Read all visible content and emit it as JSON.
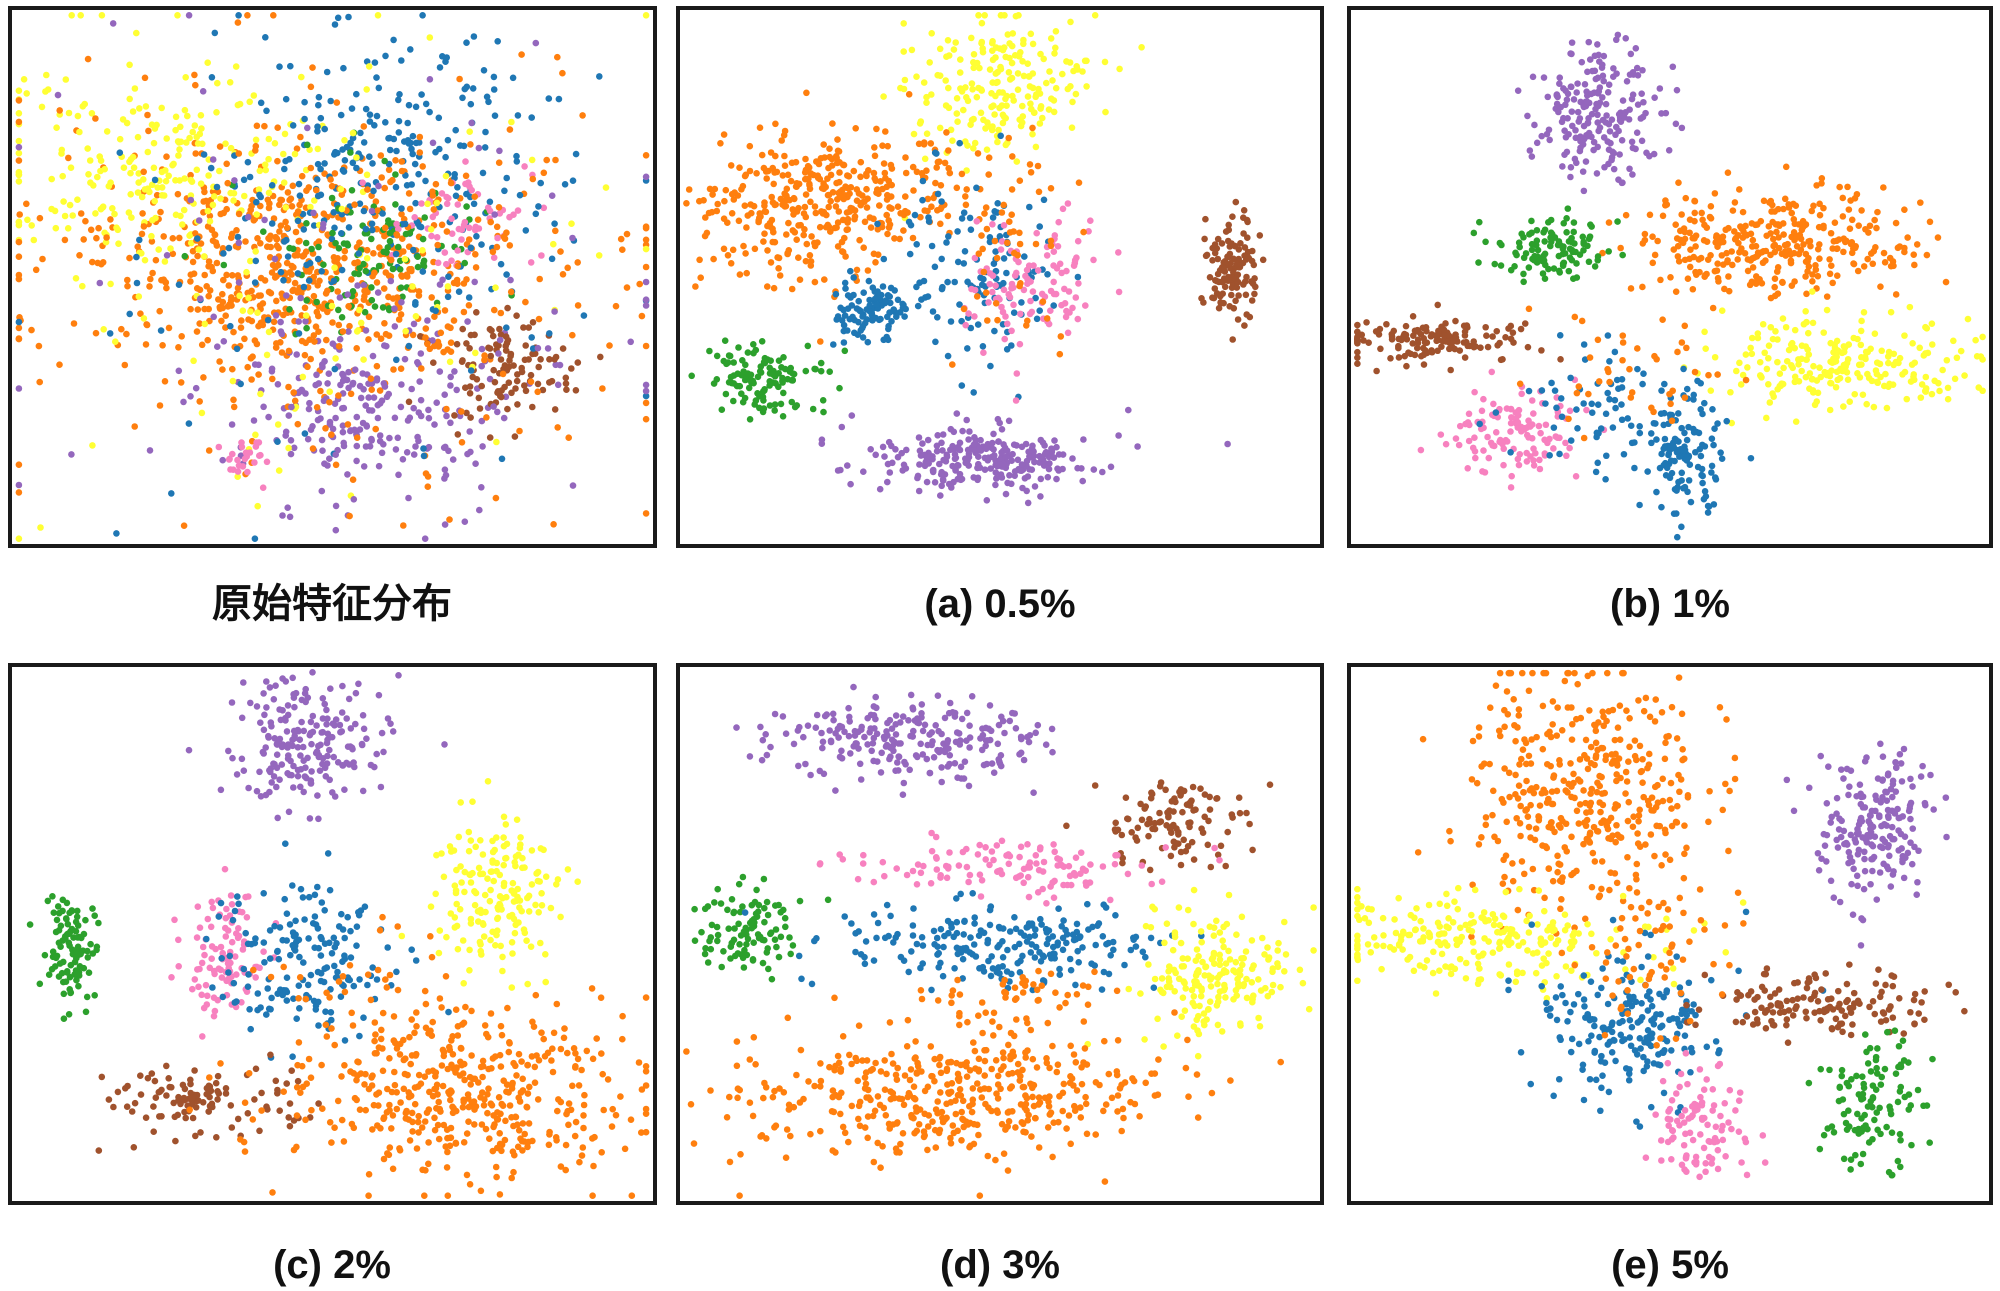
{
  "colors": {
    "orange": "#ff7f0e",
    "yellow": "#ffff33",
    "blue": "#1f77b4",
    "green": "#2ca02c",
    "purple": "#9467bd",
    "brown": "#a0522d",
    "pink": "#f781bf"
  },
  "chart_data": [
    {
      "type": "scatter",
      "title": "原始特征分布",
      "xlim": [
        0,
        100
      ],
      "ylim": [
        0,
        100
      ],
      "grid": false,
      "legend": "none",
      "clusters": [
        {
          "color": "orange",
          "cx": 44,
          "cy": 48,
          "sx": 15,
          "sy": 10,
          "n": 520
        },
        {
          "color": "yellow",
          "cx": 22,
          "cy": 30,
          "sx": 14,
          "sy": 9,
          "n": 220
        },
        {
          "color": "blue",
          "cx": 58,
          "cy": 28,
          "sx": 12,
          "sy": 12,
          "n": 230
        },
        {
          "color": "green",
          "cx": 57,
          "cy": 45,
          "sx": 8,
          "sy": 7,
          "n": 110
        },
        {
          "color": "purple",
          "cx": 55,
          "cy": 73,
          "sx": 11,
          "sy": 9,
          "n": 240
        },
        {
          "color": "brown",
          "cx": 77,
          "cy": 67,
          "sx": 5,
          "sy": 5,
          "n": 110
        },
        {
          "color": "pink",
          "cx": 70,
          "cy": 40,
          "sx": 6,
          "sy": 5,
          "n": 60
        },
        {
          "color": "orange",
          "cx": 50,
          "cy": 50,
          "sx": 26,
          "sy": 22,
          "n": 260
        },
        {
          "color": "yellow",
          "cx": 50,
          "cy": 50,
          "sx": 24,
          "sy": 24,
          "n": 100
        },
        {
          "color": "blue",
          "cx": 50,
          "cy": 50,
          "sx": 24,
          "sy": 22,
          "n": 90
        },
        {
          "color": "purple",
          "cx": 55,
          "cy": 55,
          "sx": 26,
          "sy": 22,
          "n": 70
        },
        {
          "color": "pink",
          "cx": 36,
          "cy": 84,
          "sx": 2,
          "sy": 2,
          "n": 25
        }
      ]
    },
    {
      "type": "scatter",
      "title": "(a) 0.5%",
      "xlim": [
        0,
        100
      ],
      "ylim": [
        0,
        100
      ],
      "grid": false,
      "legend": "none",
      "clusters": [
        {
          "color": "yellow",
          "cx": 49,
          "cy": 14,
          "sx": 7,
          "sy": 7,
          "n": 210
        },
        {
          "color": "orange",
          "cx": 19,
          "cy": 37,
          "sx": 8,
          "sy": 7,
          "n": 280
        },
        {
          "color": "orange",
          "cx": 32,
          "cy": 34,
          "sx": 6,
          "sy": 6,
          "n": 100
        },
        {
          "color": "blue",
          "cx": 30,
          "cy": 56,
          "sx": 3,
          "sy": 3,
          "n": 100
        },
        {
          "color": "blue",
          "cx": 48,
          "cy": 48,
          "sx": 6,
          "sy": 9,
          "n": 120
        },
        {
          "color": "pink",
          "cx": 55,
          "cy": 50,
          "sx": 6,
          "sy": 7,
          "n": 110
        },
        {
          "color": "orange",
          "cx": 50,
          "cy": 45,
          "sx": 7,
          "sy": 10,
          "n": 60
        },
        {
          "color": "green",
          "cx": 13,
          "cy": 69,
          "sx": 4,
          "sy": 3,
          "n": 120
        },
        {
          "color": "purple",
          "cx": 47,
          "cy": 84,
          "sx": 9,
          "sy": 3,
          "n": 260
        },
        {
          "color": "brown",
          "cx": 86,
          "cy": 48,
          "sx": 2,
          "sy": 5,
          "n": 120
        }
      ]
    },
    {
      "type": "scatter",
      "title": "(b) 1%",
      "xlim": [
        0,
        100
      ],
      "ylim": [
        0,
        100
      ],
      "grid": false,
      "legend": "none",
      "clusters": [
        {
          "color": "purple",
          "cx": 39,
          "cy": 19,
          "sx": 5,
          "sy": 6,
          "n": 200
        },
        {
          "color": "orange",
          "cx": 66,
          "cy": 44,
          "sx": 11,
          "sy": 5,
          "n": 330
        },
        {
          "color": "yellow",
          "cx": 76,
          "cy": 66,
          "sx": 11,
          "sy": 4,
          "n": 230
        },
        {
          "color": "green",
          "cx": 32,
          "cy": 45,
          "sx": 5,
          "sy": 3,
          "n": 110
        },
        {
          "color": "brown",
          "cx": 13,
          "cy": 62,
          "sx": 8,
          "sy": 2,
          "n": 140
        },
        {
          "color": "pink",
          "cx": 26,
          "cy": 79,
          "sx": 5,
          "sy": 4,
          "n": 120
        },
        {
          "color": "blue",
          "cx": 52,
          "cy": 82,
          "sx": 3,
          "sy": 6,
          "n": 130
        },
        {
          "color": "blue",
          "cx": 38,
          "cy": 73,
          "sx": 6,
          "sy": 6,
          "n": 60
        },
        {
          "color": "orange",
          "cx": 45,
          "cy": 68,
          "sx": 8,
          "sy": 7,
          "n": 40
        }
      ]
    },
    {
      "type": "scatter",
      "title": "(c) 2%",
      "xlim": [
        0,
        100
      ],
      "ylim": [
        0,
        100
      ],
      "grid": false,
      "legend": "none",
      "clusters": [
        {
          "color": "purple",
          "cx": 46,
          "cy": 14,
          "sx": 6,
          "sy": 6,
          "n": 200
        },
        {
          "color": "yellow",
          "cx": 76,
          "cy": 42,
          "sx": 5,
          "sy": 7,
          "n": 170
        },
        {
          "color": "green",
          "cx": 9,
          "cy": 53,
          "sx": 2,
          "sy": 5,
          "n": 100
        },
        {
          "color": "pink",
          "cx": 33,
          "cy": 55,
          "sx": 3,
          "sy": 6,
          "n": 100
        },
        {
          "color": "blue",
          "cx": 45,
          "cy": 55,
          "sx": 7,
          "sy": 8,
          "n": 170
        },
        {
          "color": "brown",
          "cx": 30,
          "cy": 81,
          "sx": 7,
          "sy": 3,
          "n": 110
        },
        {
          "color": "orange",
          "cx": 70,
          "cy": 80,
          "sx": 14,
          "sy": 8,
          "n": 420
        },
        {
          "color": "orange",
          "cx": 55,
          "cy": 65,
          "sx": 8,
          "sy": 8,
          "n": 50
        }
      ]
    },
    {
      "type": "scatter",
      "title": "(d) 3%",
      "xlim": [
        0,
        100
      ],
      "ylim": [
        0,
        100
      ],
      "grid": false,
      "legend": "none",
      "clusters": [
        {
          "color": "purple",
          "cx": 36,
          "cy": 14,
          "sx": 10,
          "sy": 4,
          "n": 230
        },
        {
          "color": "brown",
          "cx": 78,
          "cy": 29,
          "sx": 6,
          "sy": 4,
          "n": 110
        },
        {
          "color": "green",
          "cx": 11,
          "cy": 49,
          "sx": 4,
          "sy": 4,
          "n": 100
        },
        {
          "color": "pink",
          "cx": 50,
          "cy": 37,
          "sx": 12,
          "sy": 3,
          "n": 120
        },
        {
          "color": "blue",
          "cx": 50,
          "cy": 52,
          "sx": 12,
          "sy": 4,
          "n": 220
        },
        {
          "color": "yellow",
          "cx": 84,
          "cy": 58,
          "sx": 6,
          "sy": 6,
          "n": 190
        },
        {
          "color": "orange",
          "cx": 41,
          "cy": 80,
          "sx": 16,
          "sy": 6,
          "n": 430
        },
        {
          "color": "orange",
          "cx": 53,
          "cy": 62,
          "sx": 7,
          "sy": 3,
          "n": 50
        }
      ]
    },
    {
      "type": "scatter",
      "title": "(e) 5%",
      "xlim": [
        0,
        100
      ],
      "ylim": [
        0,
        100
      ],
      "grid": false,
      "legend": "none",
      "clusters": [
        {
          "color": "orange",
          "cx": 37,
          "cy": 24,
          "sx": 9,
          "sy": 12,
          "n": 400
        },
        {
          "color": "purple",
          "cx": 82,
          "cy": 29,
          "sx": 5,
          "sy": 7,
          "n": 190
        },
        {
          "color": "yellow",
          "cx": 20,
          "cy": 51,
          "sx": 13,
          "sy": 4,
          "n": 230
        },
        {
          "color": "blue",
          "cx": 44,
          "cy": 67,
          "sx": 7,
          "sy": 7,
          "n": 200
        },
        {
          "color": "brown",
          "cx": 73,
          "cy": 63,
          "sx": 9,
          "sy": 3,
          "n": 140
        },
        {
          "color": "green",
          "cx": 82,
          "cy": 82,
          "sx": 4,
          "sy": 6,
          "n": 110
        },
        {
          "color": "pink",
          "cx": 55,
          "cy": 86,
          "sx": 4,
          "sy": 5,
          "n": 100
        },
        {
          "color": "orange",
          "cx": 48,
          "cy": 55,
          "sx": 6,
          "sy": 8,
          "n": 60
        }
      ]
    }
  ]
}
